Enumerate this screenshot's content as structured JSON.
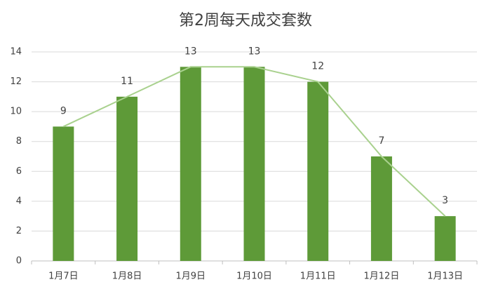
{
  "chart_data": {
    "type": "bar",
    "title": "第2周每天成交套数",
    "categories": [
      "1月7日",
      "1月8日",
      "1月9日",
      "1月10日",
      "1月11日",
      "1月12日",
      "1月13日"
    ],
    "values": [
      9,
      11,
      13,
      13,
      12,
      7,
      3
    ],
    "color": "#5e9a38",
    "line_color": "#a9d18e",
    "ylim": [
      0,
      14
    ],
    "yticks": [
      0,
      2,
      4,
      6,
      8,
      10,
      12,
      14
    ],
    "grid": true
  }
}
